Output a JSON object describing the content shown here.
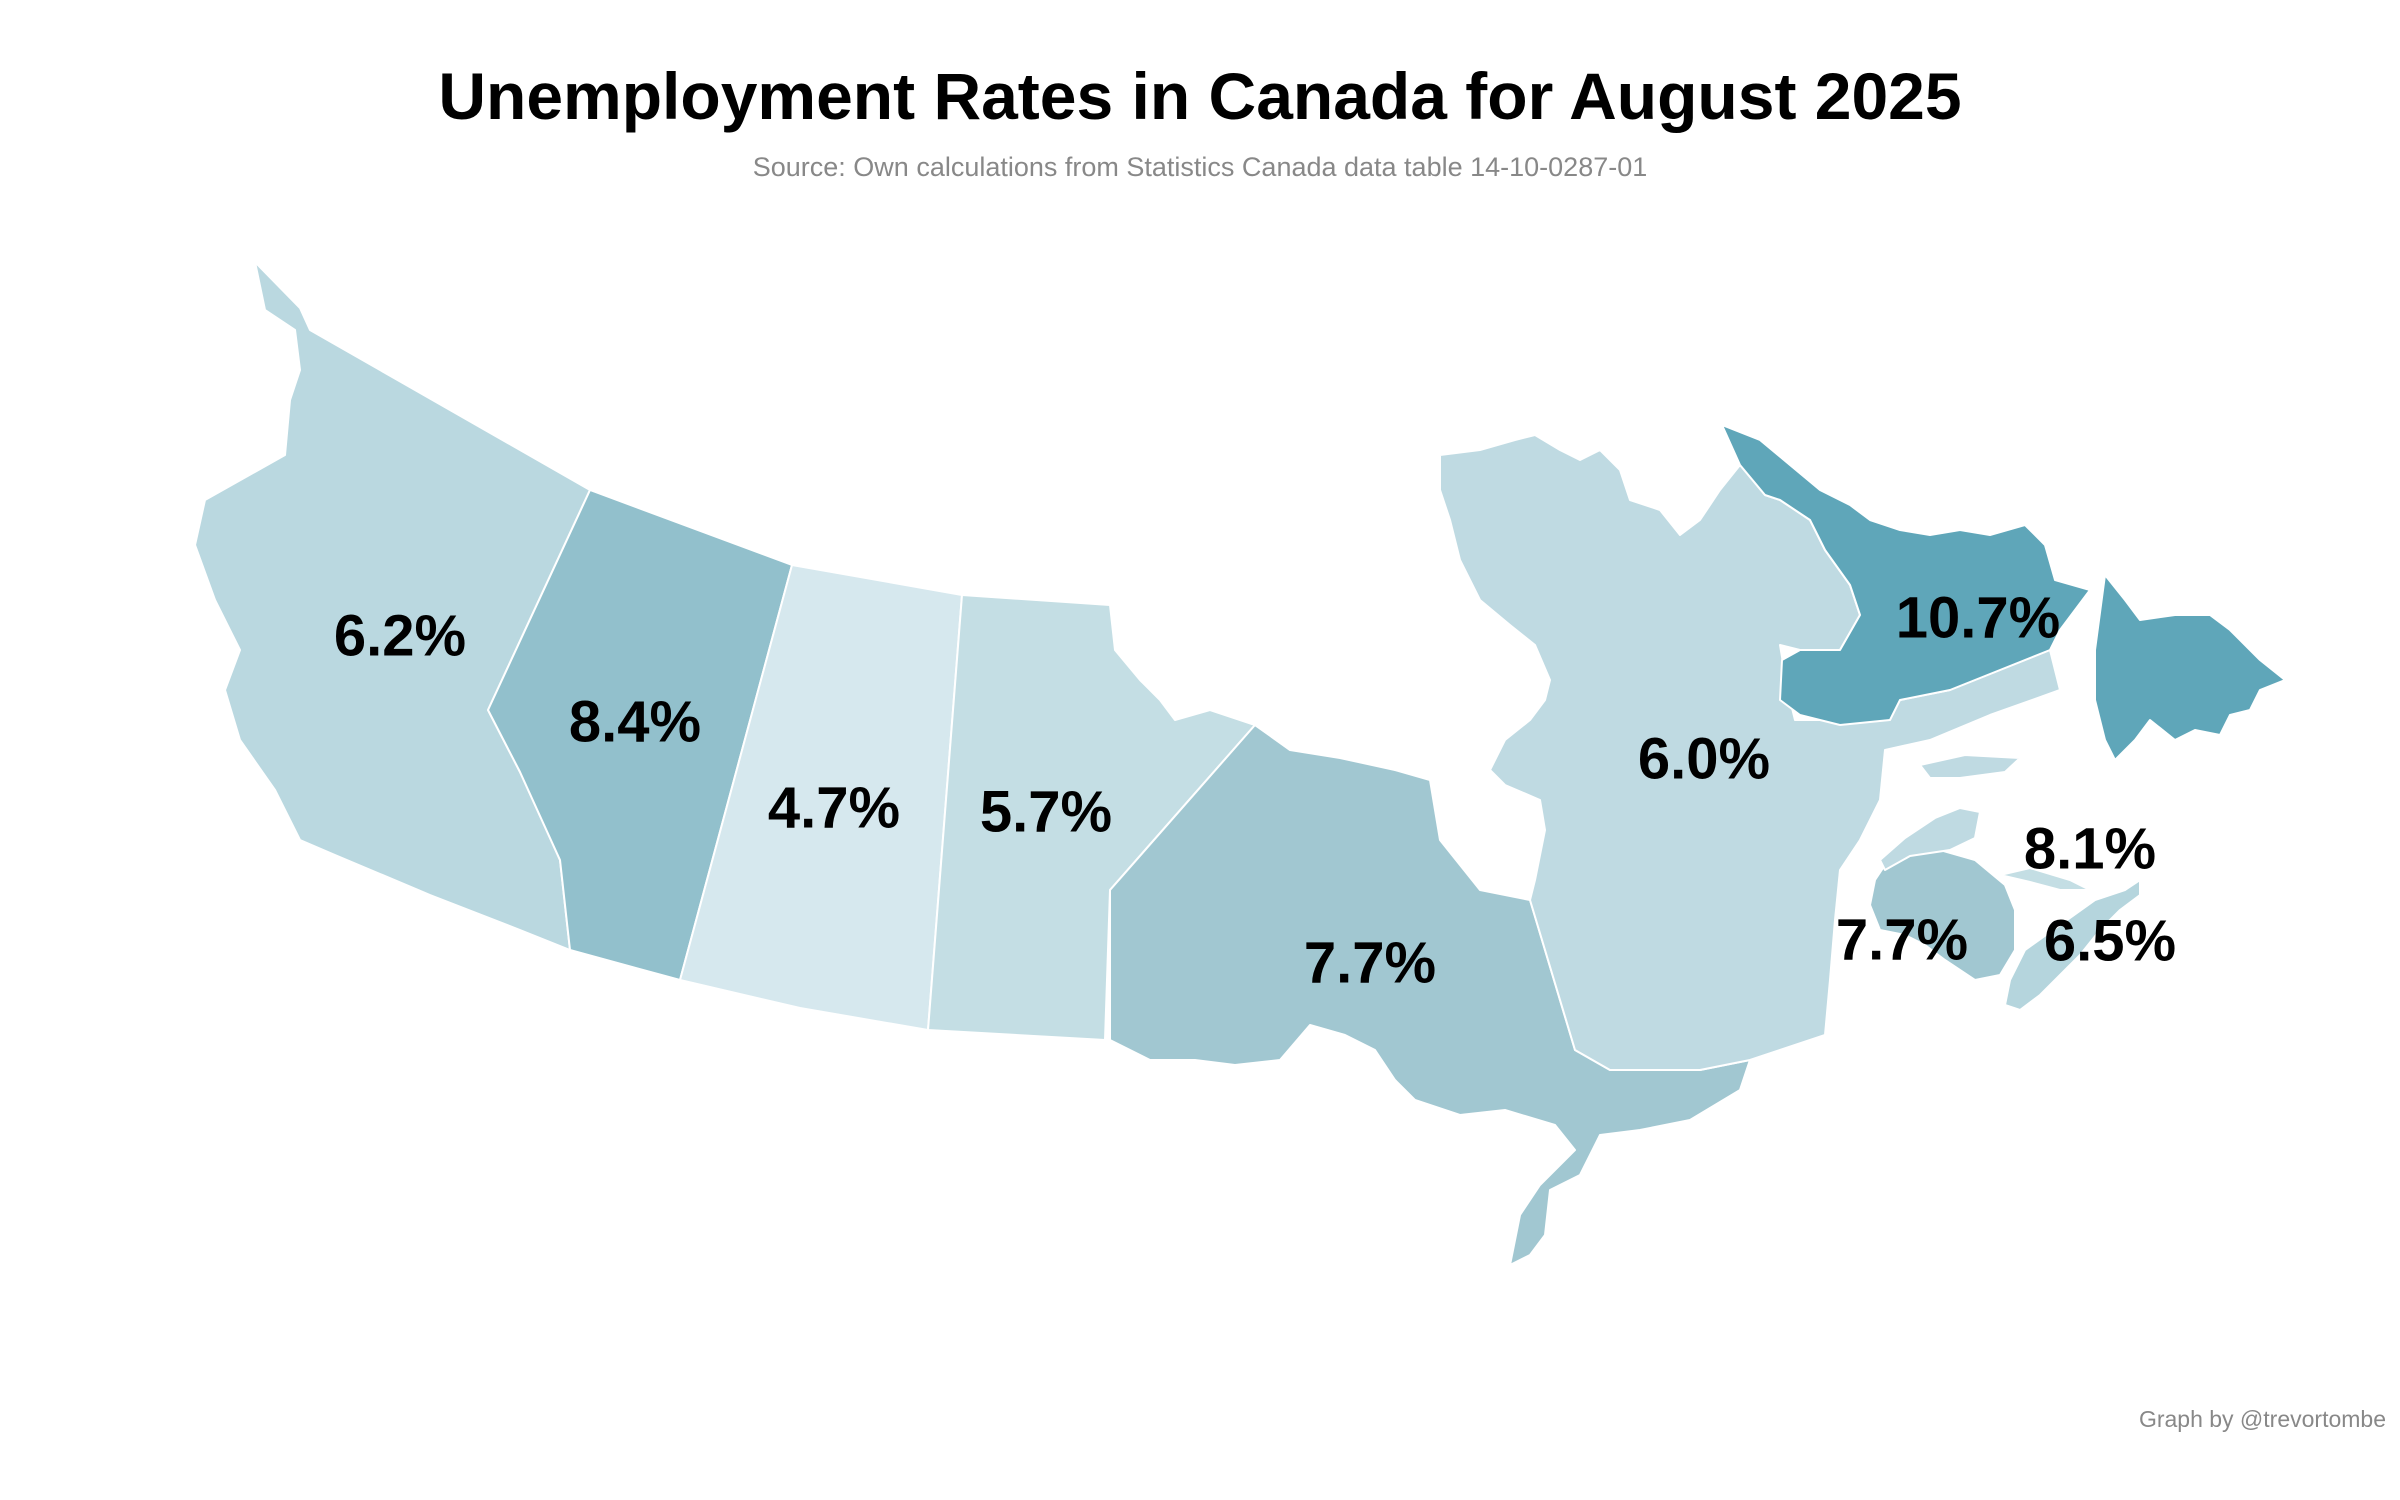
{
  "title": "Unemployment Rates in Canada for August 2025",
  "subtitle": "Source: Own calculations from Statistics Canada data table 14-10-0287-01",
  "caption": "Graph by @trevortombe",
  "chart_data": {
    "type": "choropleth",
    "title": "Unemployment Rates in Canada for August 2025",
    "unit": "%",
    "color_scale": {
      "low": "#d6e8ee",
      "high": "#5fa6b9"
    },
    "regions": [
      {
        "id": "BC",
        "value": 6.2,
        "label": "6.2%",
        "color": "#bad8e0"
      },
      {
        "id": "AB",
        "value": 8.4,
        "label": "8.4%",
        "color": "#92c0cc"
      },
      {
        "id": "SK",
        "value": 4.7,
        "label": "4.7%",
        "color": "#d6e8ee"
      },
      {
        "id": "MB",
        "value": 5.7,
        "label": "5.7%",
        "color": "#c4dee4"
      },
      {
        "id": "ON",
        "value": 7.7,
        "label": "7.7%",
        "color": "#a1c7d1"
      },
      {
        "id": "QC",
        "value": 6.0,
        "label": "6.0%",
        "color": "#bfdae2"
      },
      {
        "id": "NL",
        "value": 10.7,
        "label": "10.7%",
        "color": "#5fa6b9"
      },
      {
        "id": "NB",
        "value": 7.7,
        "label": "7.7%",
        "color": "#a1c7d1"
      },
      {
        "id": "PE",
        "value": 8.1,
        "label": "8.1%",
        "color": "#c4dee4"
      },
      {
        "id": "NS",
        "value": 6.5,
        "label": "6.5%",
        "color": "#b5d5dd"
      }
    ]
  }
}
